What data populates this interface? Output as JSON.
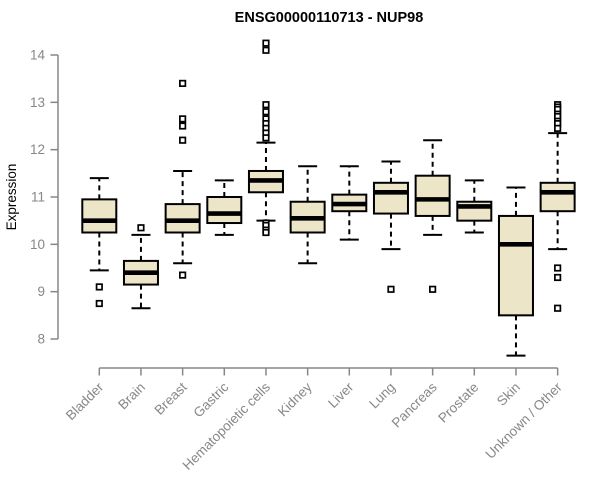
{
  "chart_data": {
    "type": "boxplot",
    "title": "ENSG00000110713 - NUP98",
    "ylabel": "Expression",
    "xlabel": "",
    "ylim": [
      7.6,
      14.35
    ],
    "yticks": [
      8,
      9,
      10,
      11,
      12,
      13,
      14
    ],
    "grid": false,
    "legend": "none",
    "categories": [
      "Bladder",
      "Brain",
      "Breast",
      "Gastric",
      "Hematopoietic cells",
      "Kidney",
      "Liver",
      "Lung",
      "Pancreas",
      "Prostate",
      "Skin",
      "Unknown / Other"
    ],
    "boxes": [
      {
        "category": "Bladder",
        "whisker_low": 9.45,
        "q1": 10.25,
        "median": 10.5,
        "q3": 10.95,
        "whisker_high": 11.4,
        "outliers": [
          9.1,
          8.75
        ]
      },
      {
        "category": "Brain",
        "whisker_low": 8.65,
        "q1": 9.15,
        "median": 9.4,
        "q3": 9.65,
        "whisker_high": 10.2,
        "outliers": [
          10.35
        ]
      },
      {
        "category": "Breast",
        "whisker_low": 9.6,
        "q1": 10.25,
        "median": 10.5,
        "q3": 10.85,
        "whisker_high": 11.55,
        "outliers": [
          13.4,
          12.65,
          12.5,
          12.2,
          9.35
        ]
      },
      {
        "category": "Gastric",
        "whisker_low": 10.2,
        "q1": 10.45,
        "median": 10.65,
        "q3": 11.0,
        "whisker_high": 11.35,
        "outliers": []
      },
      {
        "category": "Hematopoietic cells",
        "whisker_low": 10.5,
        "q1": 11.1,
        "median": 11.35,
        "q3": 11.55,
        "whisker_high": 12.15,
        "outliers": [
          14.25,
          14.1,
          12.95,
          12.8,
          12.65,
          12.55,
          12.45,
          12.35,
          12.25,
          10.45,
          10.4,
          10.3,
          10.25
        ]
      },
      {
        "category": "Kidney",
        "whisker_low": 9.6,
        "q1": 10.25,
        "median": 10.55,
        "q3": 10.9,
        "whisker_high": 11.65,
        "outliers": []
      },
      {
        "category": "Liver",
        "whisker_low": 10.1,
        "q1": 10.7,
        "median": 10.85,
        "q3": 11.05,
        "whisker_high": 11.65,
        "outliers": []
      },
      {
        "category": "Lung",
        "whisker_low": 9.9,
        "q1": 10.65,
        "median": 11.1,
        "q3": 11.3,
        "whisker_high": 11.75,
        "outliers": [
          9.05
        ]
      },
      {
        "category": "Pancreas",
        "whisker_low": 10.2,
        "q1": 10.6,
        "median": 10.95,
        "q3": 11.45,
        "whisker_high": 12.2,
        "outliers": [
          9.05
        ]
      },
      {
        "category": "Prostate",
        "whisker_low": 10.25,
        "q1": 10.5,
        "median": 10.8,
        "q3": 10.9,
        "whisker_high": 11.35,
        "outliers": []
      },
      {
        "category": "Skin",
        "whisker_low": 7.65,
        "q1": 8.5,
        "median": 10.0,
        "q3": 10.6,
        "whisker_high": 11.2,
        "outliers": []
      },
      {
        "category": "Unknown / Other",
        "whisker_low": 9.9,
        "q1": 10.7,
        "median": 11.1,
        "q3": 11.3,
        "whisker_high": 12.35,
        "outliers": [
          12.95,
          12.9,
          12.85,
          12.75,
          12.7,
          12.6,
          12.55,
          12.45,
          9.5,
          9.3,
          8.65
        ]
      }
    ]
  },
  "colors": {
    "box_fill": "#ece5c8",
    "box_border": "#000000",
    "median": "#000000",
    "whisker": "#000000",
    "outlier_fill": "#ffffff",
    "axis": "#878787",
    "title_color": "#000000",
    "background": "#ffffff"
  }
}
